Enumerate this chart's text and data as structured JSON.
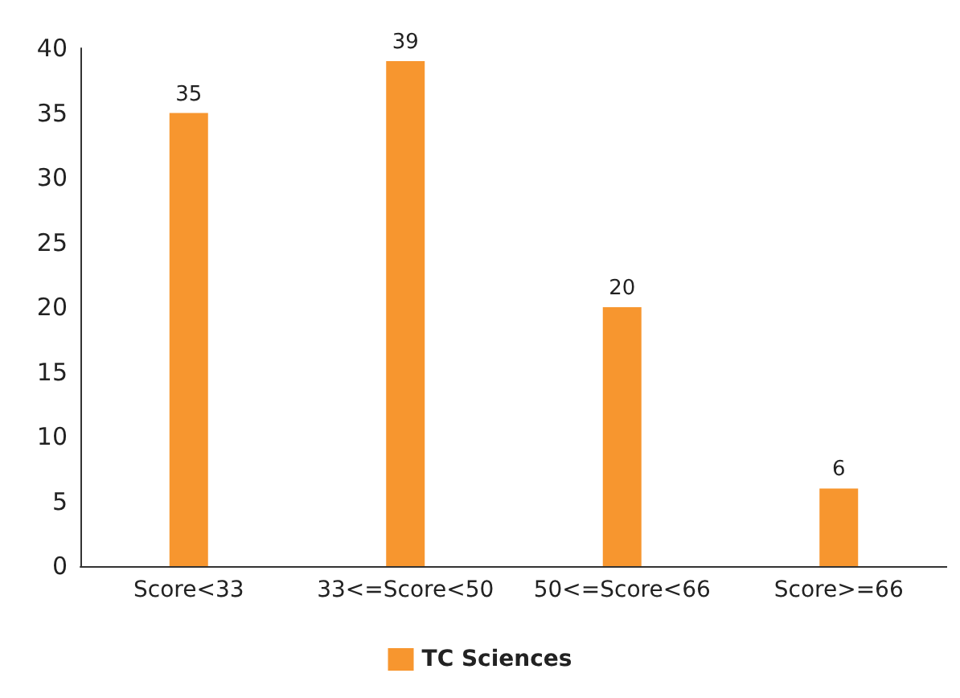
{
  "chart_data": {
    "type": "bar",
    "categories": [
      "Score<33",
      "33<=Score<50",
      "50<=Score<66",
      "Score>=66"
    ],
    "series": [
      {
        "name": "TC Sciences",
        "color": "#f7962f",
        "values": [
          35,
          39,
          20,
          6
        ]
      }
    ],
    "ylim": [
      0,
      40
    ],
    "yticks": [
      0,
      5,
      10,
      15,
      20,
      25,
      30,
      35,
      40
    ],
    "grid": false,
    "legend": "bottom",
    "data_labels": true
  }
}
